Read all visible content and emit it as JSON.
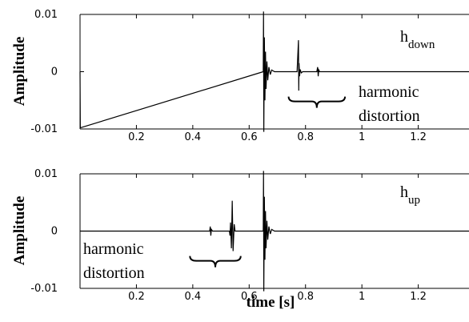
{
  "chart_data": [
    {
      "type": "line",
      "id": "top",
      "ylabel": "Amplitude",
      "xlabel": "",
      "xlim": [
        0,
        1.38
      ],
      "ylim": [
        -0.01,
        0.01
      ],
      "xticks": [
        "0.2",
        "0.4",
        "0.6",
        "0.8",
        "1",
        "1.2"
      ],
      "xtick_values": [
        0.2,
        0.4,
        0.6,
        0.8,
        1.0,
        1.2
      ],
      "yticks": [
        "0.01",
        "0",
        "-0.01"
      ],
      "ytick_values": [
        0.01,
        0,
        -0.01
      ],
      "label_main": "h",
      "label_sub": "down",
      "annotation_lines": [
        "harmonic",
        "distortion"
      ],
      "series": [
        {
          "x": [
            0,
            0.001,
            0.65,
            0.651,
            0.652,
            0.654,
            0.656,
            0.658,
            0.66,
            0.663,
            0.666,
            0.67,
            0.675,
            0.68,
            0.69,
            0.7,
            0.77,
            0.775,
            0.776,
            0.777,
            0.779,
            0.781,
            0.785,
            0.79,
            0.84,
            0.843,
            0.845,
            0.847,
            0.85,
            1.38
          ],
          "y": [
            0,
            -0.0098,
            0,
            0.0105,
            -0.0105,
            0.006,
            -0.005,
            0.0035,
            -0.003,
            0.0018,
            -0.0015,
            0.0008,
            -0.0005,
            0.0003,
            0,
            0,
            0,
            0.0055,
            -0.0033,
            0.0015,
            -0.0008,
            0.0004,
            -0.0002,
            0,
            0,
            0.0008,
            -0.0008,
            0.0003,
            0,
            0
          ]
        }
      ],
      "brace": {
        "x_from": 0.74,
        "x_to": 0.94,
        "y": -0.0052
      }
    },
    {
      "type": "line",
      "id": "bottom",
      "ylabel": "Amplitude",
      "xlabel": "time [s]",
      "xlim": [
        0,
        1.38
      ],
      "ylim": [
        -0.01,
        0.01
      ],
      "xticks": [
        "0.2",
        "0.4",
        "0.6",
        "0.8",
        "1",
        "1.2"
      ],
      "xtick_values": [
        0.2,
        0.4,
        0.6,
        0.8,
        1.0,
        1.2
      ],
      "yticks": [
        "0.01",
        "0",
        "-0.01"
      ],
      "ytick_values": [
        0.01,
        0,
        -0.01
      ],
      "label_main": "h",
      "label_sub": "up",
      "annotation_lines": [
        "harmonic",
        "distortion"
      ],
      "series": [
        {
          "x": [
            0,
            0.46,
            0.462,
            0.464,
            0.466,
            0.47,
            0.53,
            0.532,
            0.534,
            0.537,
            0.54,
            0.543,
            0.547,
            0.55,
            0.65,
            0.651,
            0.652,
            0.654,
            0.656,
            0.658,
            0.66,
            0.663,
            0.666,
            0.67,
            0.675,
            0.68,
            0.69,
            1.38
          ],
          "y": [
            0,
            0,
            0.0008,
            -0.0008,
            0.0003,
            0,
            0,
            -0.0008,
            0.0015,
            -0.003,
            0.0053,
            -0.0035,
            0.0012,
            0,
            0,
            0.0105,
            -0.0105,
            0.006,
            -0.005,
            0.0035,
            -0.003,
            0.0018,
            -0.0015,
            0.0008,
            -0.0005,
            0.0003,
            0,
            0
          ]
        }
      ],
      "brace": {
        "x_from": 0.39,
        "x_to": 0.57,
        "y": -0.0052
      }
    }
  ]
}
